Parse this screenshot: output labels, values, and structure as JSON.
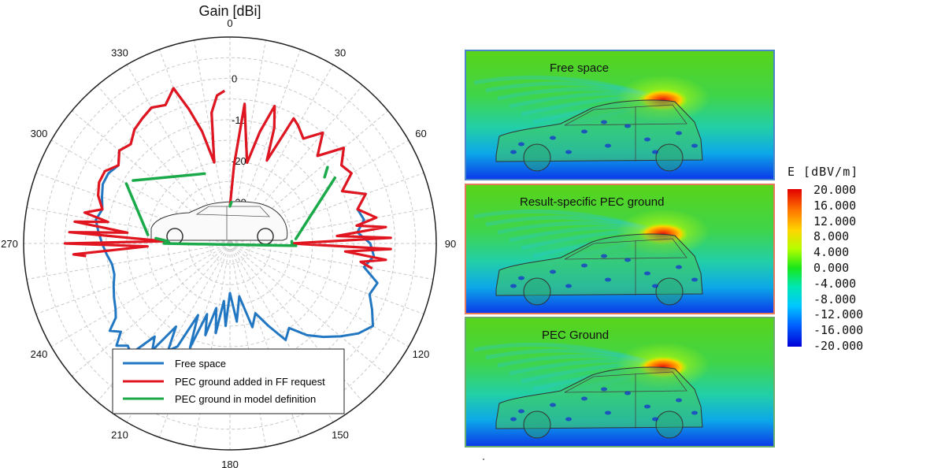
{
  "colors": {
    "free_space": "#2277c2",
    "pec_ff": "#e0151f",
    "pec_model": "#1aaa4a",
    "panel_free": "#4a86c8",
    "panel_result": "#e57a5a",
    "panel_pec": "#6cac6c"
  },
  "chart_data": [
    {
      "type": "polar",
      "title": "Gain [dBi]",
      "angle_ticks": [
        "0",
        "30",
        "60",
        "90",
        "120",
        "150",
        "180",
        "210",
        "240",
        "270",
        "300",
        "330"
      ],
      "radial_ticks": [
        "0",
        "-10",
        "-20",
        "-30"
      ],
      "radial_range": [
        -40,
        10
      ],
      "angular_unit": "degrees, clockwise from top",
      "grid": true,
      "legend": {
        "placement": "bottom-center",
        "entries": [
          "Free space",
          "PEC ground added in FF request",
          "PEC ground in model definition"
        ]
      },
      "series": [
        {
          "name": "Free space",
          "theta": [
            0,
            3,
            6,
            9,
            12,
            15,
            18,
            21,
            24,
            27,
            30,
            35,
            40,
            45,
            50,
            55,
            60,
            65,
            70,
            75,
            80,
            85,
            90,
            95,
            100,
            105,
            110,
            115,
            120,
            125,
            130,
            135,
            140,
            145,
            150,
            155,
            160,
            165,
            170,
            175,
            180,
            183,
            186,
            189,
            192,
            195,
            198,
            201,
            204,
            207,
            210,
            213,
            216,
            219,
            222,
            225,
            228,
            231,
            234,
            237,
            240,
            245,
            250,
            255,
            260,
            265,
            270,
            275,
            280,
            285,
            290,
            295,
            300,
            305,
            310,
            315,
            320,
            325,
            330,
            335,
            340,
            343,
            346,
            349,
            352,
            355,
            358
          ],
          "r": [
            -31,
            -21,
            -6,
            -15,
            -20,
            -12,
            -5,
            -10,
            -18,
            -6,
            -7,
            -9,
            -5,
            -10,
            -4,
            -7,
            -6,
            -10,
            -5,
            -8,
            -7,
            -9,
            -6,
            -5,
            -7,
            -3,
            -4,
            -2,
            0,
            -2,
            -5,
            -8,
            -11,
            -15,
            -13,
            -18,
            -22,
            -19,
            -27,
            -21,
            -28,
            -20,
            -26,
            -18,
            -24,
            -17,
            -22,
            -13,
            -21,
            -12,
            -10,
            -16,
            -8,
            -11,
            -4,
            -5,
            -3,
            -6,
            -4,
            -7,
            -8,
            -9,
            -10,
            -11,
            -11,
            -10,
            -9,
            -8,
            -7,
            -8,
            -7,
            -6,
            -6,
            -7,
            -5,
            -6,
            -4,
            -3,
            -2,
            -3,
            0,
            -6,
            -12,
            -20,
            -8,
            -4,
            -3
          ]
        },
        {
          "name": "PEC ground added in FF request",
          "theta": [
            0,
            3,
            6,
            9,
            12,
            15,
            18,
            21,
            24,
            27,
            30,
            35,
            40,
            45,
            50,
            55,
            60,
            65,
            70,
            75,
            80,
            82,
            84,
            86,
            88,
            90,
            92,
            94,
            96,
            98,
            100,
            265,
            266,
            268,
            270,
            272,
            274,
            276,
            278,
            280,
            282,
            285,
            290,
            295,
            300,
            305,
            310,
            315,
            320,
            325,
            330,
            335,
            340,
            343,
            346,
            349,
            352,
            355,
            358
          ],
          "r": [
            -31,
            -21,
            -6,
            -15,
            -20,
            -12,
            -5,
            -10,
            -18,
            -6,
            -7,
            -9,
            -5,
            -10,
            -4,
            -7,
            -6,
            -10,
            -5,
            -8,
            -4,
            -9,
            -2,
            -14,
            -1,
            -25,
            -1,
            -12,
            -2,
            -8,
            -5,
            -5,
            -2,
            -20,
            0,
            -24,
            -1,
            -15,
            -2,
            -10,
            -4,
            -8,
            -6,
            -5,
            -5,
            -7,
            -5,
            -6,
            -4,
            -3,
            -2,
            -3,
            0,
            -6,
            -12,
            -20,
            -8,
            -4,
            -3
          ]
        },
        {
          "name": "PEC ground in model definition",
          "theta": [
            0,
            2,
            52,
            55,
            58,
            86,
            88,
            90,
            92,
            270,
            272,
            274,
            276,
            300,
            303,
            340,
            342
          ],
          "r": [
            -31,
            -30,
            -10,
            -12,
            -10,
            -24,
            -25,
            -25,
            -24,
            -24,
            -25,
            -22,
            -20,
            -11,
            -12,
            -22,
            -20
          ]
        }
      ]
    },
    {
      "type": "heatmap",
      "colorbar": {
        "title": "E [dBV/m]",
        "ticks": [
          "20.000",
          "16.000",
          "12.000",
          "8.000",
          "4.000",
          "0.000",
          "-4.000",
          "-8.000",
          "-12.000",
          "-16.000",
          "-20.000"
        ],
        "range": [
          -20,
          20
        ]
      },
      "panels": [
        {
          "label": "Free space"
        },
        {
          "label": "Result-specific PEC ground"
        },
        {
          "label": "PEC Ground"
        }
      ]
    }
  ]
}
